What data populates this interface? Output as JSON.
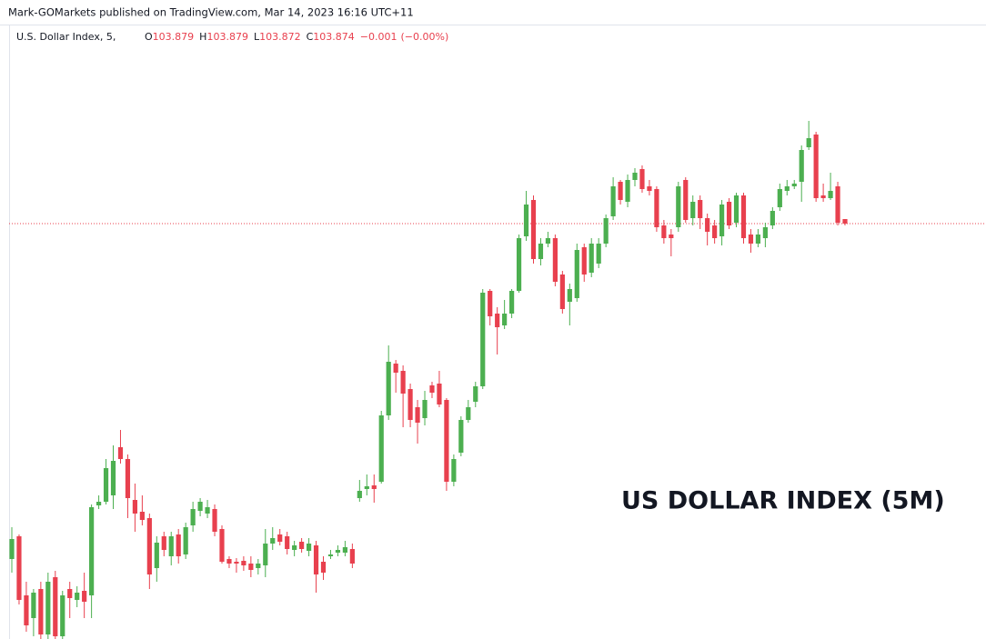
{
  "chart_data": {
    "type": "candlestick",
    "header": "Mark-GOMarkets published on TradingView.com, Mar 14, 2023 16:16 UTC+11",
    "legend": {
      "symbol": "U.S. Dollar Index, 5,",
      "open_label": "O",
      "open": 103.879,
      "high_label": "H",
      "high": 103.879,
      "low_label": "L",
      "low": 103.872,
      "close_label": "C",
      "close": 103.874,
      "change": {
        "value": -0.001,
        "label": "−0.001"
      },
      "change_percent": {
        "value": 0,
        "label": "(−0.00%)"
      }
    },
    "annotation": "US DOLLAR INDEX (5M)",
    "up_color": "#4caf50",
    "down_color": "#e8404e",
    "last_price_line": true,
    "ylim": [
      103.417,
      104.093
    ],
    "open": [
      103.505,
      103.53,
      103.465,
      103.44,
      103.472,
      103.422,
      103.485,
      103.42,
      103.472,
      103.46,
      103.47,
      103.465,
      103.564,
      103.568,
      103.575,
      103.628,
      103.615,
      103.57,
      103.557,
      103.55,
      103.495,
      103.53,
      103.508,
      103.532,
      103.51,
      103.542,
      103.558,
      103.555,
      103.56,
      103.538,
      103.505,
      103.502,
      103.503,
      103.5,
      103.495,
      103.498,
      103.522,
      103.532,
      103.53,
      103.515,
      103.524,
      103.514,
      103.52,
      103.502,
      103.508,
      103.512,
      103.512,
      103.516,
      103.572,
      103.582,
      103.586,
      103.59,
      103.663,
      103.72,
      103.712,
      103.692,
      103.672,
      103.66,
      103.696,
      103.698,
      103.68,
      103.59,
      103.622,
      103.658,
      103.678,
      103.695,
      103.8,
      103.775,
      103.762,
      103.775,
      103.8,
      103.86,
      103.9,
      103.835,
      103.852,
      103.858,
      103.818,
      103.788,
      103.792,
      103.848,
      103.82,
      103.83,
      103.852,
      103.882,
      103.92,
      103.898,
      103.922,
      103.934,
      103.915,
      103.912,
      103.872,
      103.862,
      103.87,
      103.922,
      103.88,
      103.9,
      103.88,
      103.872,
      103.86,
      103.898,
      103.875,
      103.905,
      103.862,
      103.852,
      103.858,
      103.872,
      103.892,
      103.91,
      103.915,
      103.92,
      103.958,
      103.972,
      103.905,
      103.902,
      103.915,
      103.879
    ],
    "high": [
      103.54,
      103.532,
      103.48,
      103.472,
      103.48,
      103.49,
      103.492,
      103.47,
      103.48,
      103.475,
      103.49,
      103.565,
      103.575,
      103.615,
      103.63,
      103.647,
      103.62,
      103.588,
      103.575,
      103.555,
      103.53,
      103.535,
      103.535,
      103.538,
      103.545,
      103.568,
      103.572,
      103.57,
      103.565,
      103.542,
      103.508,
      103.506,
      103.508,
      103.508,
      103.505,
      103.538,
      103.54,
      103.538,
      103.535,
      103.525,
      103.528,
      103.528,
      103.525,
      103.508,
      103.515,
      103.52,
      103.525,
      103.522,
      103.592,
      103.598,
      103.598,
      103.668,
      103.74,
      103.724,
      103.718,
      103.698,
      103.68,
      103.69,
      103.7,
      103.712,
      103.682,
      103.62,
      103.662,
      103.68,
      103.7,
      103.802,
      103.802,
      103.782,
      103.79,
      103.802,
      103.862,
      103.91,
      103.905,
      103.858,
      103.865,
      103.862,
      103.822,
      103.808,
      103.852,
      103.852,
      103.858,
      103.858,
      103.884,
      103.925,
      103.922,
      103.928,
      103.935,
      103.938,
      103.922,
      103.915,
      103.878,
      103.868,
      103.92,
      103.925,
      103.905,
      103.905,
      103.885,
      103.878,
      103.9,
      103.902,
      103.908,
      103.908,
      103.868,
      103.868,
      103.875,
      103.892,
      103.918,
      103.922,
      103.922,
      103.96,
      103.987,
      103.975,
      103.918,
      103.93,
      103.92,
      103.879
    ],
    "low": [
      103.49,
      103.455,
      103.425,
      103.42,
      103.417,
      103.417,
      103.417,
      103.417,
      103.44,
      103.452,
      103.44,
      103.44,
      103.56,
      103.565,
      103.56,
      103.61,
      103.55,
      103.535,
      103.542,
      103.472,
      103.48,
      103.508,
      103.498,
      103.5,
      103.505,
      103.535,
      103.552,
      103.55,
      103.53,
      103.5,
      103.495,
      103.49,
      103.492,
      103.485,
      103.488,
      103.485,
      103.515,
      103.52,
      103.51,
      103.508,
      103.512,
      103.508,
      103.468,
      103.482,
      103.505,
      103.508,
      103.508,
      103.495,
      103.568,
      103.575,
      103.567,
      103.588,
      103.658,
      103.688,
      103.65,
      103.65,
      103.632,
      103.652,
      103.682,
      103.672,
      103.58,
      103.585,
      103.618,
      103.655,
      103.672,
      103.692,
      103.762,
      103.73,
      103.758,
      103.77,
      103.798,
      103.855,
      103.83,
      103.828,
      103.848,
      103.805,
      103.775,
      103.762,
      103.788,
      103.81,
      103.815,
      103.825,
      103.848,
      103.878,
      103.895,
      103.892,
      103.915,
      103.908,
      103.905,
      103.865,
      103.852,
      103.838,
      103.865,
      103.875,
      103.872,
      103.868,
      103.85,
      103.852,
      103.85,
      103.868,
      103.87,
      103.852,
      103.842,
      103.848,
      103.848,
      103.868,
      103.888,
      103.905,
      103.912,
      103.898,
      103.955,
      103.898,
      103.898,
      103.9,
      103.872,
      103.872
    ],
    "close": [
      103.527,
      103.46,
      103.432,
      103.468,
      103.422,
      103.48,
      103.42,
      103.465,
      103.462,
      103.468,
      103.458,
      103.562,
      103.568,
      103.605,
      103.613,
      103.615,
      103.572,
      103.555,
      103.548,
      103.488,
      103.523,
      103.515,
      103.53,
      103.508,
      103.54,
      103.56,
      103.568,
      103.562,
      103.535,
      103.502,
      103.5,
      103.5,
      103.498,
      103.493,
      103.5,
      103.522,
      103.528,
      103.524,
      103.516,
      103.52,
      103.516,
      103.522,
      103.488,
      103.49,
      103.51,
      103.515,
      103.518,
      103.5,
      103.58,
      103.585,
      103.582,
      103.663,
      103.722,
      103.71,
      103.687,
      103.658,
      103.655,
      103.68,
      103.688,
      103.675,
      103.59,
      103.615,
      103.658,
      103.672,
      103.695,
      103.798,
      103.772,
      103.76,
      103.775,
      103.8,
      103.858,
      103.895,
      103.835,
      103.852,
      103.858,
      103.81,
      103.78,
      103.802,
      103.845,
      103.818,
      103.852,
      103.852,
      103.88,
      103.915,
      103.9,
      103.922,
      103.93,
      103.912,
      103.91,
      103.87,
      103.858,
      103.858,
      103.915,
      103.878,
      103.898,
      103.88,
      103.865,
      103.858,
      103.895,
      103.872,
      103.905,
      103.858,
      103.852,
      103.862,
      103.87,
      103.888,
      103.912,
      103.915,
      103.918,
      103.955,
      103.968,
      103.902,
      103.902,
      103.91,
      103.875,
      103.874
    ]
  }
}
